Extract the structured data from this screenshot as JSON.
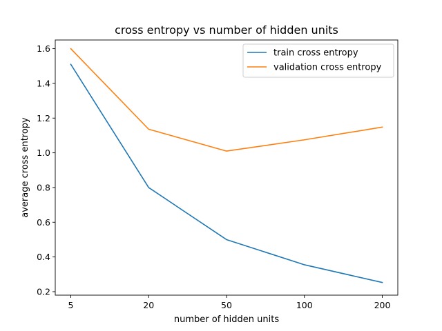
{
  "chart_data": {
    "type": "line",
    "title": "cross entropy vs number of hidden units",
    "xlabel": "number of hidden units",
    "ylabel": "average cross entropy",
    "categories": [
      "5",
      "20",
      "50",
      "100",
      "200"
    ],
    "series": [
      {
        "name": "train cross entropy",
        "color": "#1f77b4",
        "values": [
          1.51,
          0.8,
          0.5,
          0.355,
          0.253
        ]
      },
      {
        "name": "validation cross entropy",
        "color": "#ff7f0e",
        "values": [
          1.6,
          1.136,
          1.01,
          1.075,
          1.148
        ]
      }
    ],
    "ylim": [
      0.18,
      1.65
    ],
    "yticks": [
      0.2,
      0.4,
      0.6,
      0.8,
      1.0,
      1.2,
      1.4,
      1.6
    ],
    "ytick_labels": [
      "0.2",
      "0.4",
      "0.6",
      "0.8",
      "1.0",
      "1.2",
      "1.4",
      "1.6"
    ],
    "legend_position": "top-right",
    "grid": false
  }
}
